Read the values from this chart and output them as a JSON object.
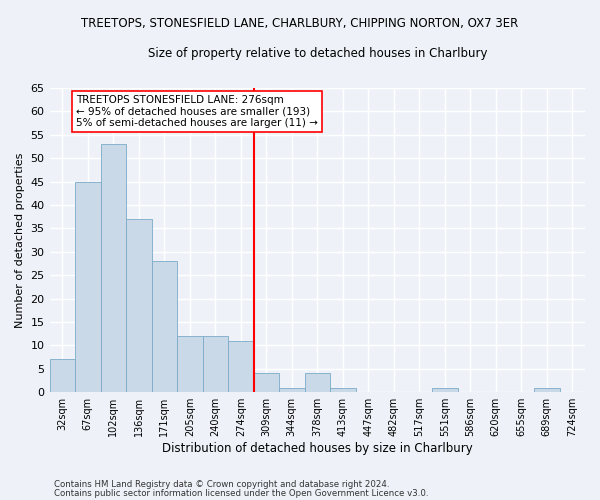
{
  "title": "TREETOPS, STONESFIELD LANE, CHARLBURY, CHIPPING NORTON, OX7 3ER",
  "subtitle": "Size of property relative to detached houses in Charlbury",
  "xlabel": "Distribution of detached houses by size in Charlbury",
  "ylabel": "Number of detached properties",
  "bar_color": "#c9d9e8",
  "bar_edge_color": "#7baac8",
  "categories": [
    "32sqm",
    "67sqm",
    "102sqm",
    "136sqm",
    "171sqm",
    "205sqm",
    "240sqm",
    "274sqm",
    "309sqm",
    "344sqm",
    "378sqm",
    "413sqm",
    "447sqm",
    "482sqm",
    "517sqm",
    "551sqm",
    "586sqm",
    "620sqm",
    "655sqm",
    "689sqm",
    "724sqm"
  ],
  "values": [
    7,
    45,
    53,
    37,
    28,
    12,
    12,
    11,
    4,
    1,
    4,
    1,
    0,
    0,
    0,
    1,
    0,
    0,
    0,
    1,
    0
  ],
  "ylim": [
    0,
    65
  ],
  "yticks": [
    0,
    5,
    10,
    15,
    20,
    25,
    30,
    35,
    40,
    45,
    50,
    55,
    60,
    65
  ],
  "red_line_x": 7.5,
  "annot_line1": "TREETOPS STONESFIELD LANE: 276sqm",
  "annot_line2": "← 95% of detached houses are smaller (193)",
  "annot_line3": "5% of semi-detached houses are larger (11) →",
  "footer_line1": "Contains HM Land Registry data © Crown copyright and database right 2024.",
  "footer_line2": "Contains public sector information licensed under the Open Government Licence v3.0.",
  "bg_color": "#eef2f8",
  "grid_color": "#ffffff"
}
